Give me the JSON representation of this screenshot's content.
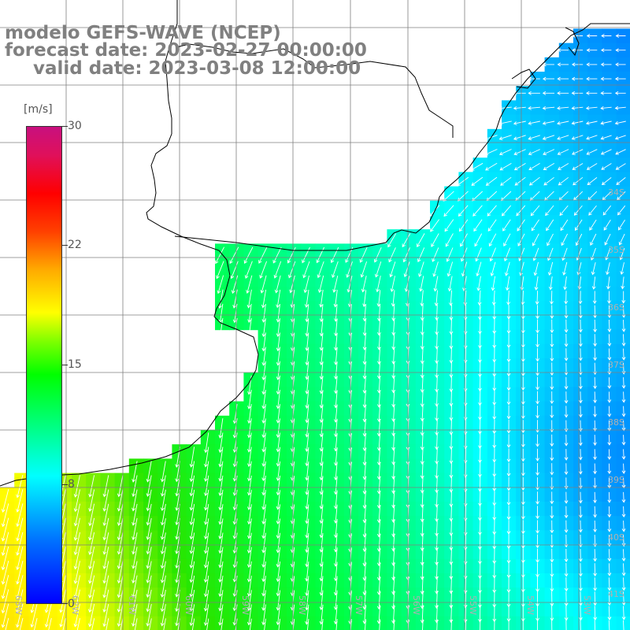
{
  "header": {
    "line1": "modelo GEFS-WAVE (NCEP)",
    "line2": "forecast date: 2023-02-27 00:00:00",
    "line3": "valid date: 2023-03-08 12:00:00"
  },
  "colorbar": {
    "unit": "[m/s]",
    "ticks": [
      "30",
      "22",
      "15",
      "8",
      "0"
    ],
    "tick_values": [
      30,
      22,
      15,
      8,
      0
    ]
  },
  "latitude_labels": [
    "34S",
    "35S",
    "36S",
    "37S",
    "38S",
    "39S",
    "40S",
    "41S"
  ],
  "longitude_labels": [
    "63W",
    "62W",
    "61W",
    "60W",
    "59W",
    "58W",
    "57W",
    "56W",
    "55W",
    "54W",
    "53W"
  ],
  "colors": {
    "land": "#ffffff",
    "grid": "#7f7f7f",
    "coast": "#000000",
    "arrow": "#ffffff",
    "header_text": "#808080"
  }
}
